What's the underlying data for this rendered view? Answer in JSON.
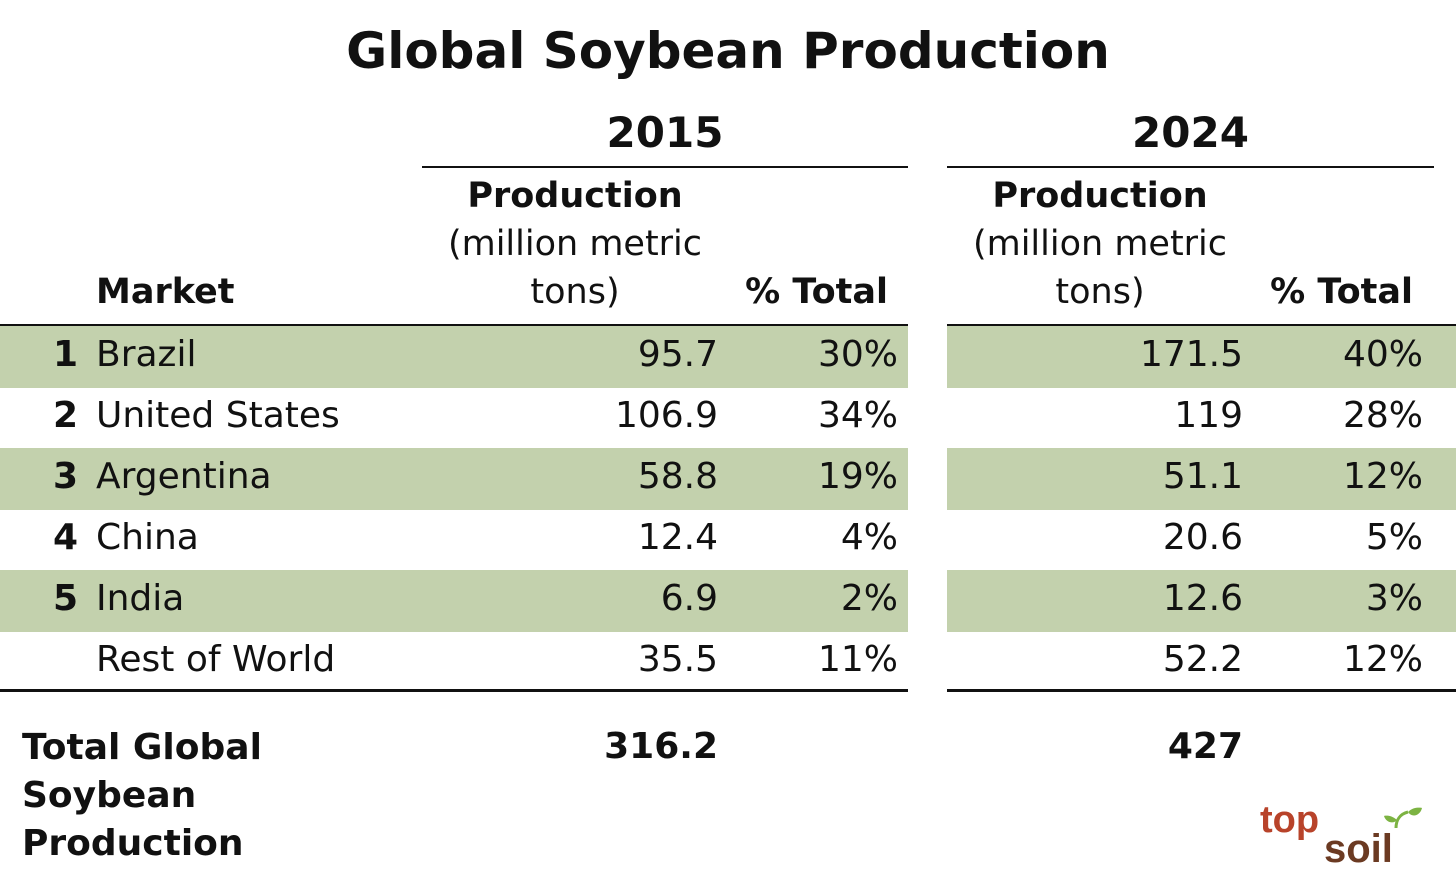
{
  "chart_data": {
    "type": "table",
    "title": "Global Soybean Production",
    "years": [
      "2015",
      "2024"
    ],
    "headers": {
      "market": "Market",
      "production_bold": "Production",
      "production_unit_line1": "(million metric",
      "production_unit_line2": "tons)",
      "pct_total": "% Total"
    },
    "rows": [
      {
        "rank": "1",
        "market": "Brazil",
        "prod_2015": "95.7",
        "pct_2015": "30%",
        "prod_2024": "171.5",
        "pct_2024": "40%",
        "shaded": true
      },
      {
        "rank": "2",
        "market": "United States",
        "prod_2015": "106.9",
        "pct_2015": "34%",
        "prod_2024": "119",
        "pct_2024": "28%",
        "shaded": false
      },
      {
        "rank": "3",
        "market": "Argentina",
        "prod_2015": "58.8",
        "pct_2015": "19%",
        "prod_2024": "51.1",
        "pct_2024": "12%",
        "shaded": true
      },
      {
        "rank": "4",
        "market": "China",
        "prod_2015": "12.4",
        "pct_2015": "4%",
        "prod_2024": "20.6",
        "pct_2024": "5%",
        "shaded": false
      },
      {
        "rank": "5",
        "market": "India",
        "prod_2015": "6.9",
        "pct_2015": "2%",
        "prod_2024": "12.6",
        "pct_2024": "3%",
        "shaded": true
      },
      {
        "rank": "",
        "market": "Rest of World",
        "prod_2015": "35.5",
        "pct_2015": "11%",
        "prod_2024": "52.2",
        "pct_2024": "12%",
        "shaded": false
      }
    ],
    "total": {
      "label": "Total Global Soybean Production",
      "prod_2015": "316.2",
      "prod_2024": "427"
    }
  },
  "colors": {
    "row_band": "#c3d1ad",
    "text": "#111111",
    "logo_red": "#b8432a",
    "logo_brown": "#6b3a22",
    "logo_green": "#7cb342"
  },
  "logo": {
    "part1": "top",
    "part2": "soil"
  }
}
